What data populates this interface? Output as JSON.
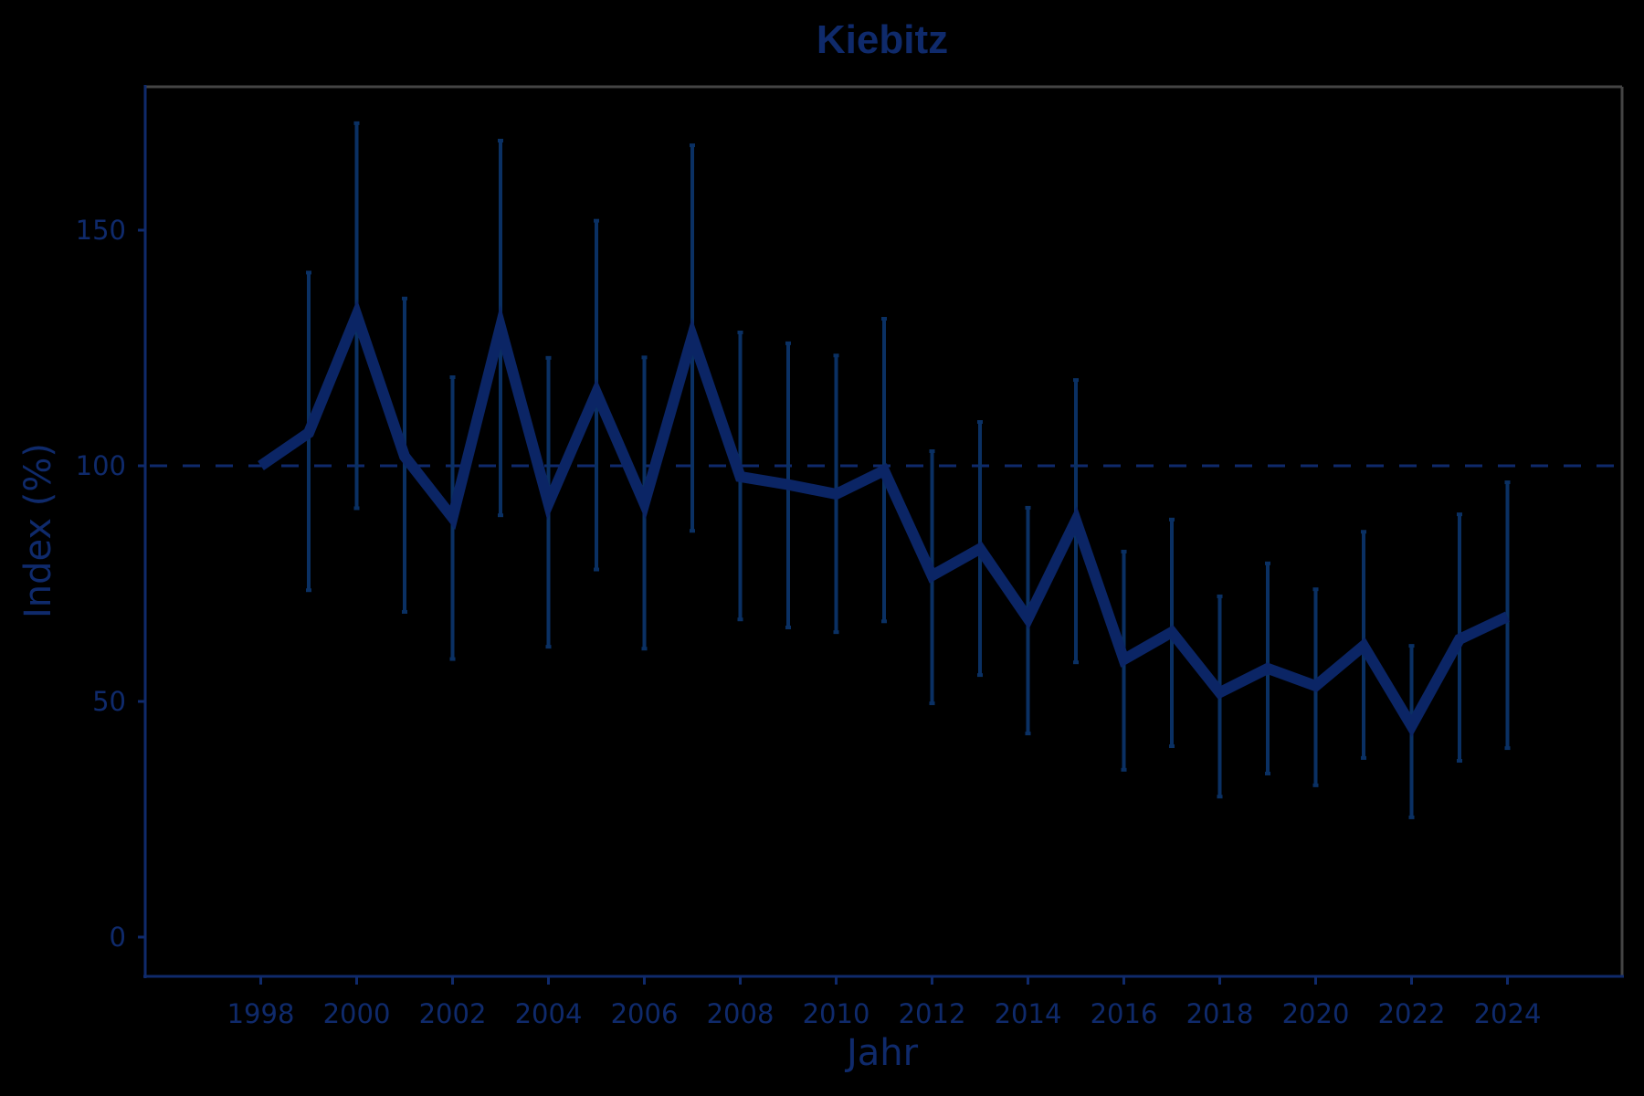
{
  "colors": {
    "background": "#000000",
    "text": "#0f2a6b",
    "axis": "#0f2a6b",
    "frame": "#444444",
    "line": "#0b2565",
    "error_bar": "#0a3063",
    "reference": "#0f2a6b"
  },
  "chart_data": {
    "type": "line",
    "title": "Kiebitz",
    "xlabel": "Jahr",
    "ylabel": "Index (%)",
    "x_ticks": [
      1998,
      2000,
      2002,
      2004,
      2006,
      2008,
      2010,
      2012,
      2014,
      2016,
      2018,
      2020,
      2022,
      2024
    ],
    "y_ticks": [
      0,
      50,
      100,
      150
    ],
    "xlim": [
      1995.6,
      2026.5
    ],
    "ylim": [
      -9.6,
      179
    ],
    "grid": false,
    "legend": null,
    "reference_line": {
      "y": 100,
      "style": "dashed"
    },
    "x": [
      1998,
      1999,
      2000,
      2001,
      2002,
      2003,
      2004,
      2005,
      2006,
      2007,
      2008,
      2009,
      2010,
      2011,
      2012,
      2013,
      2014,
      2015,
      2016,
      2017,
      2018,
      2019,
      2020,
      2021,
      2022,
      2023,
      2024
    ],
    "series": [
      {
        "name": "Index",
        "values": [
          100,
          107,
          132,
          102,
          89,
          129.5,
          92,
          115.5,
          92,
          127.5,
          97.7,
          96,
          94,
          99,
          76.7,
          82.4,
          67.6,
          88.4,
          58.9,
          64.7,
          51.9,
          57,
          53.3,
          61.8,
          44.8,
          63.2,
          68
        ],
        "lower": [
          null,
          73.6,
          91,
          69,
          59,
          89.5,
          61.6,
          78,
          61.2,
          86.2,
          67.4,
          65.7,
          64.7,
          67,
          49.6,
          55.6,
          43.2,
          58.3,
          35.5,
          40.5,
          29.8,
          34.7,
          32.2,
          38,
          25.4,
          37.4,
          40.1
        ],
        "upper": [
          null,
          141,
          172.7,
          135.5,
          118.8,
          169,
          122.9,
          152,
          123,
          168,
          128.3,
          126,
          123.4,
          131.2,
          103.1,
          109.3,
          91.1,
          118.2,
          81.8,
          88.6,
          72.3,
          79.3,
          73.8,
          86,
          61.8,
          89.7,
          96.5
        ]
      }
    ]
  }
}
